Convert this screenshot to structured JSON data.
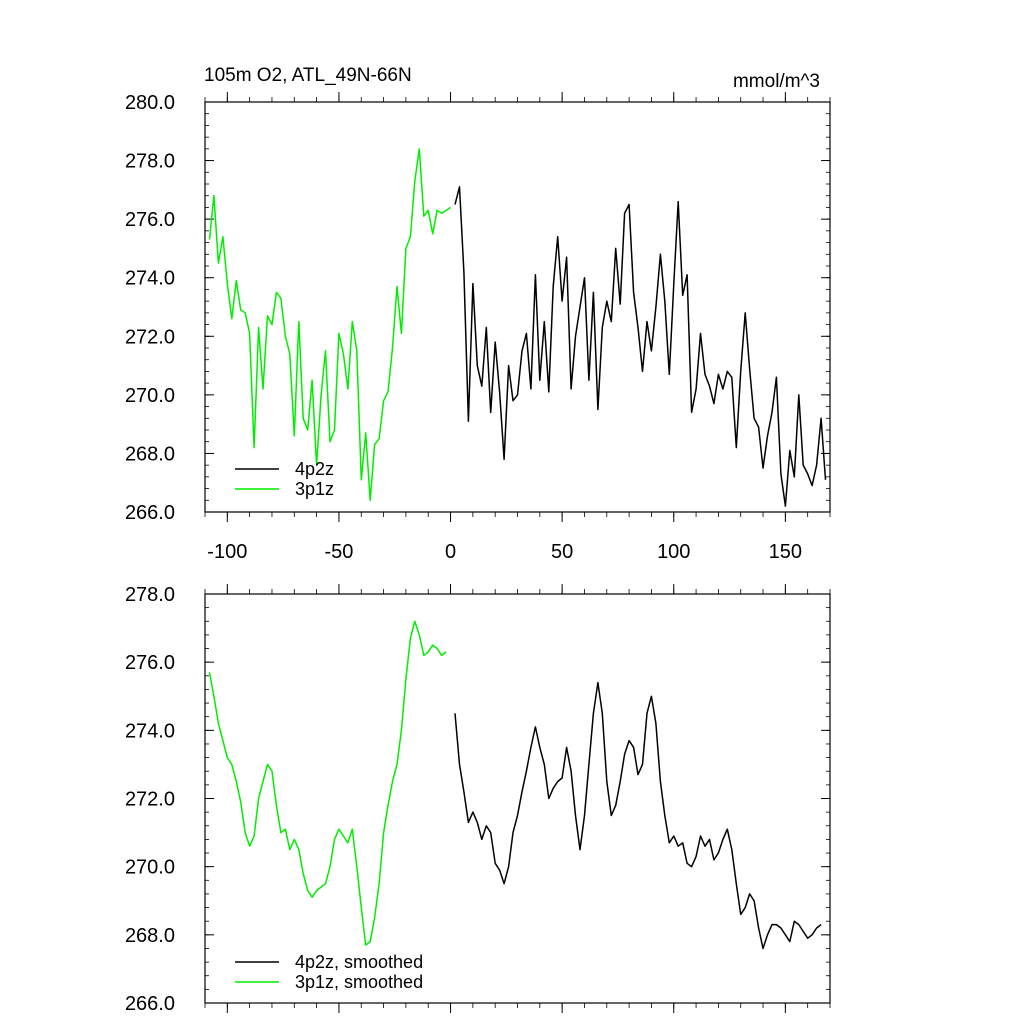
{
  "chart_data": [
    {
      "type": "line",
      "title": "105m O2, ATL_49N-66N",
      "units": "mmol/m^3",
      "xlim": [
        -110,
        170
      ],
      "ylim": [
        266.0,
        280.0
      ],
      "xticks": [
        -100,
        -50,
        0,
        50,
        100,
        150
      ],
      "xtick_labels": [
        "-100",
        "-50",
        "0",
        "50",
        "100",
        "150"
      ],
      "yticks": [
        266.0,
        268.0,
        270.0,
        272.0,
        274.0,
        276.0,
        278.0,
        280.0
      ],
      "ytick_labels": [
        "266.0",
        "268.0",
        "270.0",
        "272.0",
        "274.0",
        "276.0",
        "278.0",
        "280.0"
      ],
      "grid": false,
      "legend_position": "bottom-left",
      "series": [
        {
          "name": "4p2z",
          "color": "#000000",
          "x": [
            2,
            4,
            6,
            8,
            10,
            12,
            14,
            16,
            18,
            20,
            22,
            24,
            26,
            28,
            30,
            32,
            34,
            36,
            38,
            40,
            42,
            44,
            46,
            48,
            50,
            52,
            54,
            56,
            58,
            60,
            62,
            64,
            66,
            68,
            70,
            72,
            74,
            76,
            78,
            80,
            82,
            84,
            86,
            88,
            90,
            92,
            94,
            96,
            98,
            100,
            102,
            104,
            106,
            108,
            110,
            112,
            114,
            116,
            118,
            120,
            122,
            124,
            126,
            128,
            130,
            132,
            134,
            136,
            138,
            140,
            142,
            144,
            146,
            148,
            150,
            152,
            154,
            156,
            158,
            160,
            162,
            164,
            166,
            168
          ],
          "values": [
            276.5,
            277.1,
            274.2,
            269.1,
            273.8,
            271.0,
            270.3,
            272.3,
            269.4,
            271.8,
            270.1,
            267.8,
            271.0,
            269.8,
            270.0,
            271.5,
            272.1,
            270.2,
            274.1,
            270.5,
            272.5,
            270.1,
            273.7,
            275.4,
            273.2,
            274.7,
            270.2,
            272.0,
            273.0,
            274.0,
            270.5,
            273.5,
            269.5,
            272.3,
            273.2,
            272.5,
            275.0,
            273.1,
            276.2,
            276.5,
            273.5,
            272.3,
            270.8,
            272.5,
            271.5,
            273.0,
            274.8,
            273.2,
            270.7,
            273.8,
            276.6,
            273.4,
            274.1,
            269.4,
            270.2,
            272.1,
            270.7,
            270.3,
            269.7,
            270.7,
            270.2,
            270.8,
            270.6,
            268.2,
            270.8,
            272.8,
            270.9,
            269.2,
            268.9,
            267.5,
            268.6,
            269.4,
            270.6,
            267.3,
            266.2,
            268.1,
            267.2,
            270.0,
            267.6,
            267.3,
            266.9,
            267.6,
            269.2,
            267.1
          ]
        },
        {
          "name": "3p1z",
          "color": "#00ee00",
          "x": [
            -108,
            -106,
            -104,
            -102,
            -100,
            -98,
            -96,
            -94,
            -92,
            -90,
            -88,
            -86,
            -84,
            -82,
            -80,
            -78,
            -76,
            -74,
            -72,
            -70,
            -68,
            -66,
            -64,
            -62,
            -60,
            -58,
            -56,
            -54,
            -52,
            -50,
            -48,
            -46,
            -44,
            -42,
            -40,
            -38,
            -36,
            -34,
            -32,
            -30,
            -28,
            -26,
            -24,
            -22,
            -20,
            -18,
            -16,
            -14,
            -12,
            -10,
            -8,
            -6,
            -4,
            -2,
            0
          ],
          "values": [
            275.3,
            276.8,
            274.5,
            275.4,
            273.8,
            272.6,
            273.9,
            272.9,
            272.8,
            272.1,
            268.2,
            272.3,
            270.2,
            272.7,
            272.4,
            273.5,
            273.3,
            272.0,
            271.4,
            268.6,
            272.5,
            269.2,
            268.8,
            270.5,
            267.6,
            270.0,
            271.5,
            268.4,
            268.8,
            272.1,
            271.4,
            270.2,
            272.5,
            271.5,
            267.1,
            268.7,
            266.4,
            268.3,
            268.5,
            269.8,
            270.1,
            271.6,
            273.7,
            272.1,
            275.0,
            275.4,
            277.3,
            278.4,
            276.1,
            276.3,
            275.5,
            276.3,
            276.2,
            276.3,
            276.4
          ]
        }
      ]
    },
    {
      "type": "line",
      "xlim": [
        -110,
        170
      ],
      "ylim": [
        266.0,
        278.0
      ],
      "xticks": [
        -100,
        -50,
        0,
        50,
        100,
        150
      ],
      "yticks": [
        266.0,
        268.0,
        270.0,
        272.0,
        274.0,
        276.0,
        278.0
      ],
      "ytick_labels": [
        "266.0",
        "268.0",
        "270.0",
        "272.0",
        "274.0",
        "276.0",
        "278.0"
      ],
      "grid": false,
      "legend_position": "bottom-left",
      "series": [
        {
          "name": "4p2z, smoothed",
          "color": "#000000",
          "x": [
            2,
            4,
            6,
            8,
            10,
            12,
            14,
            16,
            18,
            20,
            22,
            24,
            26,
            28,
            30,
            32,
            34,
            36,
            38,
            40,
            42,
            44,
            46,
            48,
            50,
            52,
            54,
            56,
            58,
            60,
            62,
            64,
            66,
            68,
            70,
            72,
            74,
            76,
            78,
            80,
            82,
            84,
            86,
            88,
            90,
            92,
            94,
            96,
            98,
            100,
            102,
            104,
            106,
            108,
            110,
            112,
            114,
            116,
            118,
            120,
            122,
            124,
            126,
            128,
            130,
            132,
            134,
            136,
            138,
            140,
            142,
            144,
            146,
            148,
            150,
            152,
            154,
            156,
            158,
            160,
            162,
            164,
            166
          ],
          "values": [
            274.5,
            273.0,
            272.2,
            271.3,
            271.6,
            271.3,
            270.8,
            271.2,
            271.0,
            270.1,
            269.9,
            269.5,
            270.0,
            271.0,
            271.5,
            272.2,
            272.8,
            273.5,
            274.1,
            273.5,
            273.0,
            272.0,
            272.3,
            272.5,
            272.6,
            273.5,
            272.8,
            271.5,
            270.5,
            271.5,
            273.0,
            274.5,
            275.4,
            274.5,
            272.5,
            271.5,
            271.8,
            272.5,
            273.3,
            273.7,
            273.5,
            272.7,
            273.0,
            274.5,
            275.0,
            274.2,
            272.5,
            271.5,
            270.7,
            270.9,
            270.6,
            270.7,
            270.1,
            270.0,
            270.3,
            270.9,
            270.6,
            270.8,
            270.2,
            270.4,
            270.8,
            271.1,
            270.5,
            269.5,
            268.6,
            268.8,
            269.2,
            269.0,
            268.2,
            267.6,
            268.0,
            268.3,
            268.3,
            268.2,
            268.0,
            267.8,
            268.4,
            268.3,
            268.1,
            267.9,
            268.0,
            268.2,
            268.3
          ]
        },
        {
          "name": "3p1z, smoothed",
          "color": "#00ee00",
          "x": [
            -108,
            -106,
            -104,
            -102,
            -100,
            -98,
            -96,
            -94,
            -92,
            -90,
            -88,
            -86,
            -84,
            -82,
            -80,
            -78,
            -76,
            -74,
            -72,
            -70,
            -68,
            -66,
            -64,
            -62,
            -60,
            -58,
            -56,
            -54,
            -52,
            -50,
            -48,
            -46,
            -44,
            -42,
            -40,
            -38,
            -36,
            -34,
            -32,
            -30,
            -28,
            -26,
            -24,
            -22,
            -20,
            -18,
            -16,
            -14,
            -12,
            -10,
            -8,
            -6,
            -4,
            -2
          ],
          "values": [
            275.7,
            275.0,
            274.2,
            273.7,
            273.2,
            273.0,
            272.5,
            271.9,
            271.0,
            270.6,
            270.9,
            272.0,
            272.5,
            273.0,
            272.8,
            271.8,
            271.0,
            271.1,
            270.5,
            270.8,
            270.5,
            269.8,
            269.3,
            269.1,
            269.3,
            269.4,
            269.5,
            270.0,
            270.8,
            271.1,
            270.9,
            270.7,
            271.1,
            270.0,
            268.8,
            267.7,
            267.8,
            268.5,
            269.5,
            271.0,
            271.8,
            272.5,
            273.0,
            274.0,
            275.5,
            276.7,
            277.2,
            276.8,
            276.2,
            276.3,
            276.5,
            276.4,
            276.2,
            276.3
          ]
        }
      ]
    }
  ]
}
